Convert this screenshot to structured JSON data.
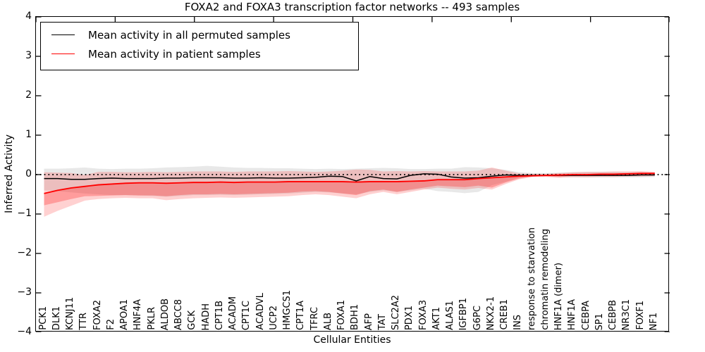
{
  "chart_data": {
    "type": "line",
    "title": "FOXA2 and FOXA3 transcription factor networks -- 493 samples",
    "xlabel": "Cellular Entities",
    "ylabel": "Inferred Activity",
    "ylim": [
      -4,
      4
    ],
    "grid": false,
    "legend_position": "upper left",
    "zero_line": 0,
    "y_ticks": [
      {
        "v": 4,
        "label": "4"
      },
      {
        "v": 3,
        "label": "3"
      },
      {
        "v": 2,
        "label": "2"
      },
      {
        "v": 1,
        "label": "1"
      },
      {
        "v": 0,
        "label": "0"
      },
      {
        "v": -1,
        "label": "−1"
      },
      {
        "v": -2,
        "label": "−2"
      },
      {
        "v": -3,
        "label": "−3"
      },
      {
        "v": -4,
        "label": "−4"
      }
    ],
    "categories": [
      "PCK1",
      "DLK1",
      "KCNJ11",
      "TTR",
      "FOXA2",
      "F2",
      "APOA1",
      "HNF4A",
      "PKLR",
      "ALDOB",
      "ABCC8",
      "GCK",
      "HADH",
      "CPT1B",
      "ACADM",
      "CPT1C",
      "ACADVL",
      "UCP2",
      "HMGCS1",
      "CPT1A",
      "TFRC",
      "ALB",
      "FOXA1",
      "BDH1",
      "AFP",
      "TAT",
      "SLC2A2",
      "PDX1",
      "FOXA3",
      "AKT1",
      "ALAS1",
      "IGFBP1",
      "G6PC",
      "NKX2-1",
      "CREB1",
      "INS",
      "response to starvation",
      "chromatin remodeling",
      "HNF1A (dimer)",
      "HNF1A",
      "CEBPA",
      "SP1",
      "CEBPB",
      "NR3C1",
      "FOXF1",
      "NF1"
    ],
    "series": [
      {
        "key": "permuted-mean-line",
        "name": "Mean activity in all permuted samples",
        "color": "#000000",
        "width": 1.5,
        "values": [
          -0.1,
          -0.1,
          -0.12,
          -0.12,
          -0.1,
          -0.09,
          -0.1,
          -0.1,
          -0.1,
          -0.09,
          -0.09,
          -0.08,
          -0.08,
          -0.08,
          -0.09,
          -0.09,
          -0.08,
          -0.09,
          -0.09,
          -0.08,
          -0.07,
          -0.04,
          -0.05,
          -0.16,
          -0.05,
          -0.1,
          -0.11,
          -0.02,
          0.02,
          0.01,
          -0.06,
          -0.09,
          -0.08,
          -0.04,
          -0.01,
          -0.02,
          -0.02,
          -0.02,
          -0.02,
          -0.02,
          -0.02,
          -0.02,
          -0.02,
          -0.02,
          -0.01,
          -0.01
        ]
      },
      {
        "key": "patient-mean-line",
        "name": "Mean activity in patient samples",
        "color": "#ff0000",
        "width": 1.8,
        "values": [
          -0.48,
          -0.4,
          -0.34,
          -0.3,
          -0.26,
          -0.24,
          -0.22,
          -0.21,
          -0.21,
          -0.22,
          -0.21,
          -0.2,
          -0.2,
          -0.19,
          -0.2,
          -0.19,
          -0.19,
          -0.19,
          -0.18,
          -0.18,
          -0.18,
          -0.18,
          -0.18,
          -0.19,
          -0.18,
          -0.18,
          -0.18,
          -0.17,
          -0.16,
          -0.13,
          -0.13,
          -0.13,
          -0.1,
          -0.08,
          -0.06,
          -0.04,
          -0.03,
          -0.02,
          -0.01,
          0.0,
          0.0,
          0.01,
          0.01,
          0.02,
          0.03,
          0.03
        ]
      }
    ],
    "bands": [
      {
        "key": "permuted-range-band",
        "color": "rgba(0,0,0,0.09)",
        "hi": [
          0.15,
          0.15,
          0.16,
          0.18,
          0.15,
          0.14,
          0.15,
          0.15,
          0.16,
          0.18,
          0.19,
          0.2,
          0.22,
          0.2,
          0.18,
          0.17,
          0.17,
          0.16,
          0.16,
          0.15,
          0.14,
          0.15,
          0.14,
          0.15,
          0.16,
          0.17,
          0.16,
          0.14,
          0.14,
          0.15,
          0.15,
          0.19,
          0.18,
          0.16,
          0.12,
          0.06,
          0.04,
          0.04,
          0.05,
          0.06,
          0.07,
          0.07,
          0.07,
          0.06,
          0.06,
          0.05
        ],
        "lo": [
          -0.4,
          -0.42,
          -0.45,
          -0.48,
          -0.5,
          -0.52,
          -0.52,
          -0.53,
          -0.54,
          -0.56,
          -0.54,
          -0.52,
          -0.52,
          -0.51,
          -0.52,
          -0.51,
          -0.5,
          -0.49,
          -0.48,
          -0.46,
          -0.44,
          -0.45,
          -0.48,
          -0.5,
          -0.44,
          -0.4,
          -0.44,
          -0.4,
          -0.36,
          -0.42,
          -0.44,
          -0.47,
          -0.44,
          -0.27,
          -0.18,
          -0.08,
          -0.04,
          -0.04,
          -0.05,
          -0.06,
          -0.07,
          -0.07,
          -0.07,
          -0.07,
          -0.07,
          -0.06
        ]
      },
      {
        "key": "patient-outer-range-band",
        "color": "rgba(255,0,0,0.18)",
        "hi": [
          0.06,
          0.05,
          0.04,
          -0.01,
          0.07,
          0.07,
          0.06,
          0.06,
          0.07,
          0.06,
          0.07,
          0.08,
          0.08,
          0.08,
          0.07,
          0.08,
          0.08,
          0.08,
          0.09,
          0.08,
          0.07,
          0.08,
          0.1,
          0.13,
          0.12,
          0.08,
          0.09,
          0.08,
          0.09,
          0.08,
          0.08,
          0.08,
          0.1,
          0.18,
          0.1,
          0.03,
          0.02,
          0.02,
          0.04,
          0.06,
          0.07,
          0.07,
          0.08,
          0.08,
          0.09,
          0.07
        ],
        "lo": [
          -1.07,
          -0.92,
          -0.79,
          -0.66,
          -0.62,
          -0.6,
          -0.59,
          -0.6,
          -0.6,
          -0.65,
          -0.62,
          -0.6,
          -0.59,
          -0.58,
          -0.59,
          -0.58,
          -0.57,
          -0.56,
          -0.55,
          -0.52,
          -0.5,
          -0.52,
          -0.56,
          -0.6,
          -0.5,
          -0.44,
          -0.5,
          -0.44,
          -0.38,
          -0.33,
          -0.36,
          -0.38,
          -0.34,
          -0.38,
          -0.24,
          -0.12,
          -0.06,
          -0.06,
          -0.08,
          -0.07,
          -0.07,
          -0.06,
          -0.06,
          -0.05,
          -0.05,
          -0.04
        ]
      },
      {
        "key": "patient-inner-range-band",
        "color": "rgba(255,0,0,0.25)",
        "hi": [
          -0.46,
          -0.38,
          -0.32,
          -0.28,
          -0.24,
          -0.22,
          -0.2,
          -0.19,
          -0.19,
          -0.2,
          -0.19,
          -0.18,
          -0.18,
          -0.17,
          -0.18,
          -0.17,
          -0.17,
          -0.17,
          -0.16,
          -0.16,
          -0.16,
          -0.16,
          -0.16,
          -0.17,
          -0.16,
          -0.16,
          -0.16,
          -0.15,
          -0.14,
          -0.11,
          -0.11,
          -0.11,
          -0.08,
          -0.06,
          -0.04,
          -0.02,
          -0.01,
          0.0,
          0.01,
          0.02,
          0.02,
          0.03,
          0.03,
          0.04,
          0.05,
          0.05
        ],
        "lo": [
          -0.78,
          -0.7,
          -0.62,
          -0.55,
          -0.54,
          -0.53,
          -0.52,
          -0.53,
          -0.53,
          -0.55,
          -0.52,
          -0.5,
          -0.5,
          -0.49,
          -0.5,
          -0.49,
          -0.48,
          -0.47,
          -0.46,
          -0.43,
          -0.42,
          -0.44,
          -0.48,
          -0.52,
          -0.42,
          -0.38,
          -0.44,
          -0.38,
          -0.33,
          -0.28,
          -0.3,
          -0.32,
          -0.28,
          -0.33,
          -0.2,
          -0.1,
          -0.05,
          -0.05,
          -0.06,
          -0.03,
          -0.03,
          -0.02,
          -0.02,
          -0.01,
          -0.01,
          -0.01
        ]
      }
    ]
  }
}
